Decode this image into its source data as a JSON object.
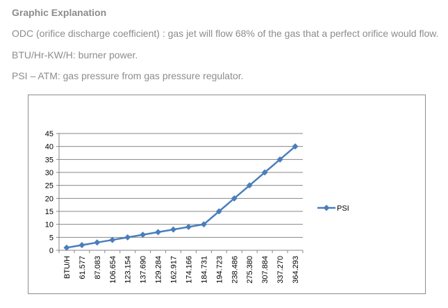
{
  "document": {
    "heading": "Graphic Explanation",
    "paragraphs": [
      "ODC (orifice discharge coefficient) : gas jet will flow 68% of the gas that a perfect orifice would flow.",
      "BTU/Hr-KW/H: burner power.",
      "PSI – ATM: gas pressure from gas pressure regulator."
    ],
    "text_color": "#8c8c8c"
  },
  "chart_data": {
    "type": "line",
    "title": "",
    "xlabel": "",
    "ylabel": "",
    "categories": [
      "BTU/H",
      "61.577",
      "87.083",
      "106.654",
      "123.154",
      "137.690",
      "129.284",
      "162.917",
      "174.166",
      "184.731",
      "194.723",
      "238.486",
      "275.380",
      "307.884",
      "337.270",
      "364.293"
    ],
    "series": [
      {
        "name": "PSI",
        "values": [
          1,
          2,
          3,
          4,
          5,
          6,
          7,
          8,
          9,
          10,
          15,
          20,
          25,
          30,
          35,
          40
        ],
        "color": "#4a7ebb"
      }
    ],
    "ylim": [
      0,
      45
    ],
    "yticks": [
      0,
      5,
      10,
      15,
      20,
      25,
      30,
      35,
      40,
      45
    ],
    "grid": true,
    "legend": "right",
    "marker": "diamond"
  }
}
